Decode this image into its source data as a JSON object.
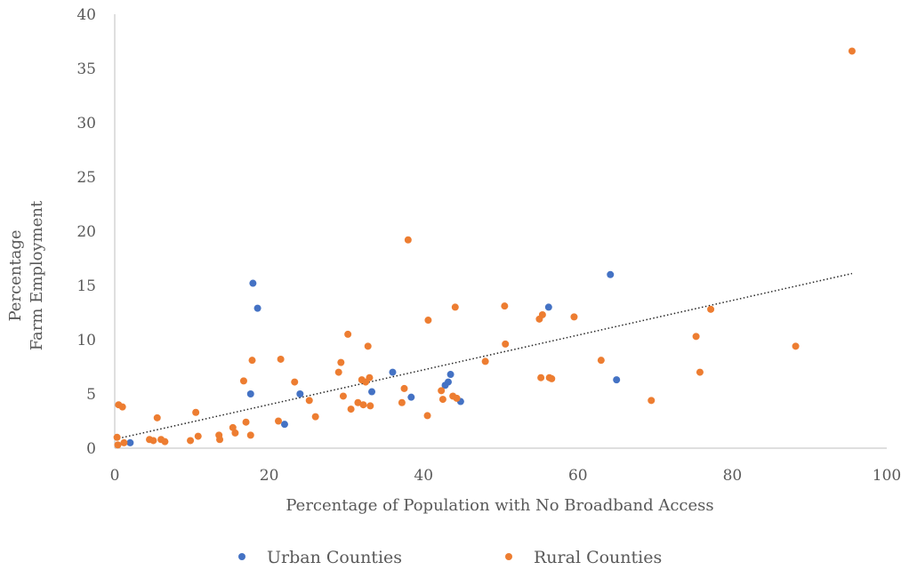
{
  "chart_data": {
    "type": "scatter",
    "title": "",
    "xlabel": "Percentage of Population with No Broadband Access",
    "ylabel_lines": [
      "Percentage",
      "Farm Employment"
    ],
    "xlim": [
      0,
      100
    ],
    "ylim": [
      0,
      40
    ],
    "x_ticks": [
      0,
      20,
      40,
      60,
      80,
      100
    ],
    "y_ticks": [
      0,
      5,
      10,
      15,
      20,
      25,
      30,
      35,
      40
    ],
    "grid": false,
    "legend_position": "bottom",
    "trendline": {
      "style": "dotted",
      "x": [
        0.5,
        95.5
      ],
      "y": [
        0.9,
        16.1
      ],
      "color": "#262626"
    },
    "series": [
      {
        "name": "Urban Counties",
        "color": "#4472C4",
        "points": [
          [
            2,
            0.5
          ],
          [
            17.6,
            5.0
          ],
          [
            17.9,
            15.2
          ],
          [
            18.5,
            12.9
          ],
          [
            22,
            2.2
          ],
          [
            24,
            5.0
          ],
          [
            33.3,
            5.2
          ],
          [
            36,
            7.0
          ],
          [
            38.4,
            4.7
          ],
          [
            42.8,
            5.8
          ],
          [
            43.2,
            6.1
          ],
          [
            43.5,
            6.8
          ],
          [
            44.8,
            4.3
          ],
          [
            56.2,
            13.0
          ],
          [
            64.2,
            16.0
          ],
          [
            65,
            6.3
          ]
        ]
      },
      {
        "name": "Rural Counties",
        "color": "#ED7D31",
        "points": [
          [
            0.3,
            1.0
          ],
          [
            0.4,
            0.3
          ],
          [
            0.5,
            4.0
          ],
          [
            1.0,
            3.8
          ],
          [
            1.2,
            0.5
          ],
          [
            4.5,
            0.8
          ],
          [
            5,
            0.7
          ],
          [
            5.5,
            2.8
          ],
          [
            6,
            0.8
          ],
          [
            6.5,
            0.6
          ],
          [
            9.8,
            0.7
          ],
          [
            10.5,
            3.3
          ],
          [
            10.8,
            1.1
          ],
          [
            13.5,
            1.2
          ],
          [
            13.6,
            0.8
          ],
          [
            15.3,
            1.9
          ],
          [
            15.6,
            1.4
          ],
          [
            16.7,
            6.2
          ],
          [
            17,
            2.4
          ],
          [
            17.6,
            1.2
          ],
          [
            17.8,
            8.1
          ],
          [
            21.2,
            2.5
          ],
          [
            21.5,
            8.2
          ],
          [
            23.3,
            6.1
          ],
          [
            25.2,
            4.4
          ],
          [
            26,
            2.9
          ],
          [
            29,
            7.0
          ],
          [
            29.3,
            7.9
          ],
          [
            29.6,
            4.8
          ],
          [
            30.2,
            10.5
          ],
          [
            30.6,
            3.6
          ],
          [
            31.5,
            4.2
          ],
          [
            32,
            6.3
          ],
          [
            32.2,
            4.0
          ],
          [
            32.5,
            6.1
          ],
          [
            32.8,
            9.4
          ],
          [
            33,
            6.5
          ],
          [
            33.1,
            3.9
          ],
          [
            37.2,
            4.2
          ],
          [
            37.5,
            5.5
          ],
          [
            38,
            19.2
          ],
          [
            40.5,
            3.0
          ],
          [
            40.6,
            11.8
          ],
          [
            42.3,
            5.3
          ],
          [
            42.5,
            4.5
          ],
          [
            43.8,
            4.8
          ],
          [
            44.1,
            13.0
          ],
          [
            44.3,
            4.6
          ],
          [
            48,
            8.0
          ],
          [
            50.5,
            13.1
          ],
          [
            50.6,
            9.6
          ],
          [
            55,
            11.9
          ],
          [
            55.2,
            6.5
          ],
          [
            55.4,
            12.3
          ],
          [
            56.3,
            6.5
          ],
          [
            56.6,
            6.4
          ],
          [
            59.5,
            12.1
          ],
          [
            63,
            8.1
          ],
          [
            69.5,
            4.4
          ],
          [
            75.3,
            10.3
          ],
          [
            75.8,
            7.0
          ],
          [
            77.2,
            12.8
          ],
          [
            88.2,
            9.4
          ],
          [
            95.5,
            36.6
          ]
        ]
      }
    ]
  }
}
